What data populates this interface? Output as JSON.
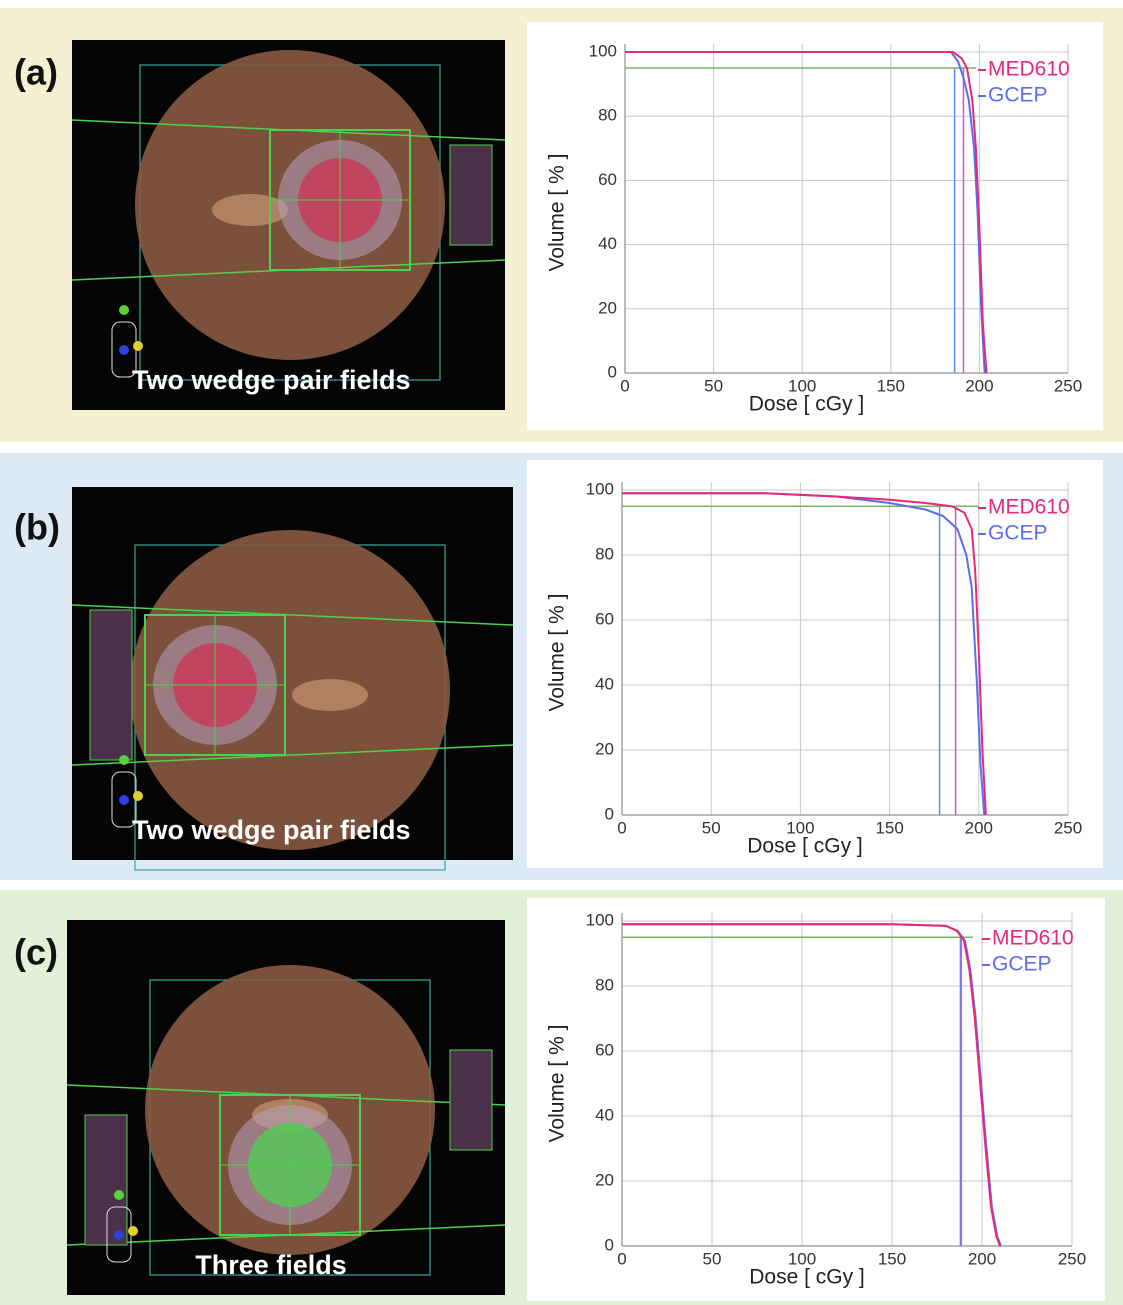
{
  "chart_data": [
    {
      "type": "line",
      "panel_label": "(a)",
      "caption": "Two wedge pair fields",
      "xlabel": "Dose [ cGy ]",
      "ylabel": "Volume [ % ]",
      "xlim": [
        0,
        250
      ],
      "ylim": [
        0,
        100
      ],
      "xticks": [
        0,
        50,
        100,
        150,
        200,
        250
      ],
      "yticks": [
        0,
        20,
        40,
        60,
        80,
        100
      ],
      "grid": true,
      "series": [
        {
          "name": "MED610",
          "color": "#e8287a",
          "x": [
            0,
            185,
            190,
            193,
            196,
            198,
            200,
            202,
            204
          ],
          "values": [
            100,
            100,
            98,
            95,
            85,
            70,
            45,
            15,
            0
          ]
        },
        {
          "name": "GCEP",
          "color": "#5a6ff0",
          "x": [
            0,
            184,
            188,
            191,
            194,
            197,
            199,
            201,
            203
          ],
          "values": [
            100,
            100,
            97,
            92,
            85,
            70,
            50,
            20,
            0
          ]
        }
      ],
      "hline": {
        "y": 95,
        "x": [
          0,
          198
        ],
        "color": "#7ab55c"
      },
      "vlines": [
        {
          "x": 186,
          "y": [
            0,
            95
          ],
          "color": "#5a8ff0"
        },
        {
          "x": 191,
          "y": [
            0,
            95
          ],
          "color": "#d050e0"
        }
      ]
    },
    {
      "type": "line",
      "panel_label": "(b)",
      "caption": "Two wedge pair fields",
      "xlabel": "Dose [ cGy ]",
      "ylabel": "Volume [ % ]",
      "xlim": [
        0,
        250
      ],
      "ylim": [
        0,
        100
      ],
      "xticks": [
        0,
        50,
        100,
        150,
        200,
        250
      ],
      "yticks": [
        0,
        20,
        40,
        60,
        80,
        100
      ],
      "grid": true,
      "series": [
        {
          "name": "MED610",
          "color": "#e8287a",
          "x": [
            0,
            80,
            120,
            150,
            170,
            185,
            192,
            196,
            198,
            200,
            202,
            204
          ],
          "values": [
            99,
            99,
            98,
            97,
            96,
            95,
            93,
            88,
            75,
            50,
            20,
            0
          ]
        },
        {
          "name": "GCEP",
          "color": "#5a6ff0",
          "x": [
            0,
            80,
            120,
            150,
            170,
            180,
            188,
            193,
            196,
            199,
            201,
            203
          ],
          "values": [
            99,
            99,
            98,
            96,
            94,
            92,
            88,
            80,
            70,
            40,
            15,
            0
          ]
        }
      ],
      "hline": {
        "y": 95,
        "x": [
          0,
          200
        ],
        "color": "#7ab55c"
      },
      "vlines": [
        {
          "x": 178,
          "y": [
            0,
            95
          ],
          "color": "#5a8ff0"
        },
        {
          "x": 187,
          "y": [
            0,
            95
          ],
          "color": "#d050e0"
        }
      ]
    },
    {
      "type": "line",
      "panel_label": "(c)",
      "caption": "Three fields",
      "xlabel": "Dose [ cGy ]",
      "ylabel": "Volume [ % ]",
      "xlim": [
        0,
        250
      ],
      "ylim": [
        0,
        100
      ],
      "xticks": [
        0,
        50,
        100,
        150,
        200,
        250
      ],
      "yticks": [
        0,
        20,
        40,
        60,
        80,
        100
      ],
      "grid": true,
      "series": [
        {
          "name": "MED610",
          "color": "#e8287a",
          "x": [
            0,
            150,
            180,
            186,
            190,
            193,
            196,
            199,
            202,
            205,
            208,
            210
          ],
          "values": [
            99,
            99,
            98.5,
            97,
            94,
            85,
            70,
            50,
            30,
            12,
            3,
            0
          ]
        },
        {
          "name": "GCEP",
          "color": "#5a6ff0",
          "x": [
            0,
            150,
            180,
            186.5,
            190.5,
            193.5,
            196.5,
            199.5,
            202.5,
            205.5,
            208.5,
            210.5
          ],
          "values": [
            99,
            99,
            98.5,
            97,
            94,
            85,
            70,
            50,
            30,
            12,
            3,
            0
          ]
        }
      ],
      "hline": {
        "y": 95,
        "x": [
          0,
          195
        ],
        "color": "#7ab55c"
      },
      "vlines": [
        {
          "x": 188,
          "y": [
            0,
            95
          ],
          "color": "#5a8ff0"
        },
        {
          "x": 188.5,
          "y": [
            0,
            95
          ],
          "color": "#b060e0"
        }
      ]
    }
  ]
}
